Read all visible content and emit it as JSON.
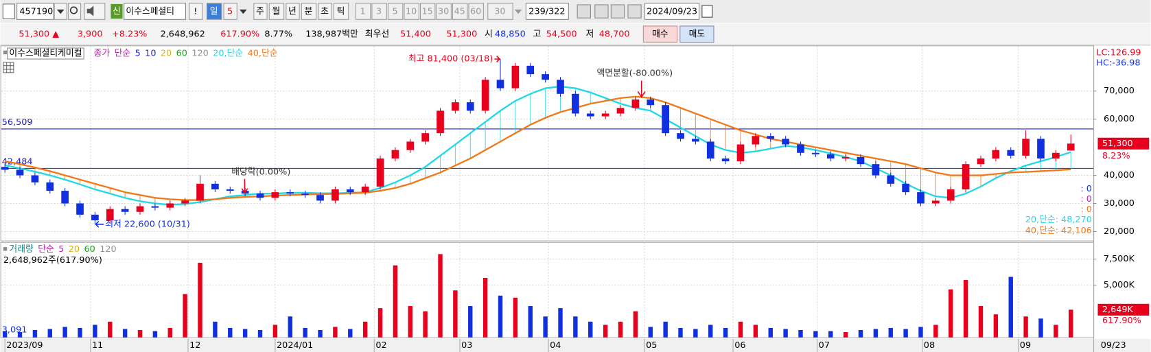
{
  "toolbar": {
    "code": "457190",
    "badge": "신",
    "name": "이수스페셜티",
    "alert": "!",
    "periods": [
      "일",
      "5",
      "주",
      "월",
      "년",
      "분",
      "초",
      "틱"
    ],
    "intervals": [
      "1",
      "3",
      "5",
      "10",
      "15",
      "30",
      "45",
      "60",
      "30"
    ],
    "count": "239/322",
    "date": "2024/09/23"
  },
  "quote": {
    "price": "51,300 ▲",
    "change": "3,900",
    "change_pct": "+8.23%",
    "volume": "2,648,962",
    "volume_ratio": "617.90%",
    "turnover": "8.77%",
    "amount": "138,987백만",
    "best_label": "최우선",
    "best_ask": "51,400",
    "best_bid": "51,300",
    "open_label": "시",
    "open": "48,850",
    "high_label": "고",
    "high": "54,500",
    "low_label": "저",
    "low": "48,700",
    "buy": "매수",
    "sell": "매도"
  },
  "chart_data": [
    {
      "type": "candlestick",
      "legend": [
        {
          "text": "이수스페셜티케미컬",
          "color": "#000000"
        },
        {
          "text": "종가",
          "color": "#c020b0"
        },
        {
          "text": "단순",
          "color": "#c020b0"
        },
        {
          "text": "5",
          "color": "#2020d0"
        },
        {
          "text": "10",
          "color": "#2020d0"
        },
        {
          "text": "20",
          "color": "#e0b000"
        },
        {
          "text": "60",
          "color": "#20a020"
        },
        {
          "text": "120",
          "color": "#909090"
        }
      ],
      "open": [
        43000,
        42000,
        40000,
        37500,
        34500,
        30000,
        26000,
        24000,
        28000,
        27000,
        29000,
        28500,
        30000,
        31000,
        37000,
        35000,
        34500,
        33500,
        32000,
        34000,
        33500,
        33000,
        31000,
        35000,
        34000,
        36000,
        46000,
        49000,
        52000,
        55000,
        63000,
        66000,
        63000,
        74000,
        71000,
        79000,
        76000,
        74000,
        69000,
        62000,
        61000,
        62000,
        64000,
        67000,
        65000,
        55000,
        53000,
        52000,
        46000,
        45000,
        51000,
        54000,
        53000,
        51000,
        48000,
        47500,
        46000,
        46500,
        44000,
        40000,
        37000,
        34000,
        30000,
        31000,
        35000,
        44000,
        46000,
        49000,
        47000,
        53000,
        46000,
        48850
      ],
      "high": [
        44000,
        43000,
        41000,
        38500,
        35500,
        31000,
        27000,
        29000,
        29000,
        30000,
        30000,
        31000,
        32000,
        40000,
        38000,
        36000,
        35500,
        34500,
        35000,
        35000,
        34500,
        34000,
        36000,
        36000,
        37000,
        47000,
        50000,
        53000,
        56000,
        64000,
        67000,
        67000,
        75000,
        81400,
        80000,
        80000,
        77000,
        75000,
        70000,
        63000,
        63000,
        65000,
        68000,
        68000,
        66000,
        56000,
        54000,
        53000,
        47000,
        52000,
        55000,
        55000,
        54000,
        52000,
        49000,
        48500,
        47500,
        47500,
        45000,
        41000,
        38000,
        35000,
        32000,
        36000,
        45000,
        47000,
        50000,
        50000,
        56000,
        54000,
        49000,
        54500
      ],
      "low": [
        41000,
        39000,
        36500,
        33500,
        29000,
        25000,
        22600,
        23000,
        26000,
        26000,
        27500,
        27500,
        29000,
        30000,
        34000,
        33500,
        32500,
        31000,
        31000,
        32500,
        32000,
        30000,
        30000,
        33000,
        33000,
        35000,
        45000,
        48000,
        51000,
        54000,
        62000,
        62000,
        62000,
        70000,
        70000,
        75000,
        73000,
        68000,
        61000,
        60000,
        60000,
        61000,
        63000,
        64000,
        54000,
        52000,
        51000,
        45000,
        44000,
        44000,
        50000,
        52000,
        50000,
        47000,
        46500,
        45000,
        45000,
        43000,
        39000,
        36000,
        33000,
        29000,
        29000,
        30000,
        34000,
        43000,
        45000,
        46000,
        46000,
        45000,
        45000,
        48700
      ],
      "close": [
        42000,
        40000,
        37500,
        34500,
        30000,
        26000,
        24000,
        28000,
        27000,
        29000,
        28500,
        30000,
        31000,
        37000,
        35000,
        34500,
        33500,
        32000,
        34000,
        33500,
        33000,
        31000,
        35000,
        34000,
        36000,
        46000,
        49000,
        52000,
        55000,
        63000,
        66000,
        63000,
        74000,
        71000,
        79000,
        76000,
        74000,
        69000,
        62000,
        61000,
        62000,
        64000,
        67000,
        65000,
        55000,
        53000,
        52000,
        46000,
        45000,
        51000,
        54000,
        53000,
        51000,
        48000,
        47500,
        46000,
        46500,
        44000,
        40000,
        37000,
        34000,
        30000,
        31000,
        35000,
        44000,
        46000,
        49000,
        47000,
        53000,
        46000,
        48000,
        51300
      ],
      "up_color": "#e8001c",
      "down_color": "#1030e0",
      "series": [
        {
          "name": "20,단순",
          "color": "#22d8e8",
          "values": [
            43600,
            42500,
            41300,
            40000,
            38500,
            36800,
            35000,
            33500,
            32000,
            30800,
            30000,
            29500,
            29800,
            30500,
            31500,
            32500,
            33000,
            33500,
            33500,
            33800,
            33800,
            33600,
            33600,
            33800,
            34000,
            35500,
            37500,
            40000,
            43000,
            47000,
            51000,
            55000,
            59000,
            63000,
            66500,
            69000,
            71000,
            71600,
            71000,
            69500,
            67500,
            65500,
            64000,
            63000,
            60000,
            57000,
            54000,
            51000,
            49000,
            48000,
            48500,
            49500,
            50500,
            50000,
            49000,
            47800,
            46500,
            45000,
            42500,
            40000,
            37000,
            34500,
            32500,
            32000,
            33500,
            36000,
            39000,
            41500,
            43500,
            45000,
            46500,
            48270
          ]
        },
        {
          "name": "40,단순",
          "color": "#f07a1a",
          "values": [
            45000,
            44000,
            42800,
            41500,
            40000,
            38500,
            37000,
            35500,
            34000,
            33000,
            32000,
            31500,
            31200,
            31200,
            31500,
            32000,
            32300,
            32500,
            32800,
            33000,
            33200,
            33300,
            33400,
            33600,
            33800,
            34500,
            35500,
            37000,
            39000,
            41000,
            43500,
            46000,
            49000,
            52000,
            55000,
            58000,
            60500,
            62500,
            64000,
            65500,
            66500,
            67500,
            68000,
            67500,
            66000,
            64000,
            62000,
            60000,
            58000,
            56000,
            54500,
            53000,
            52000,
            51000,
            50000,
            49000,
            48000,
            47000,
            46000,
            45000,
            44000,
            42500,
            41000,
            40000,
            40000,
            40000,
            40500,
            41000,
            41200,
            41500,
            41800,
            42106
          ]
        }
      ],
      "series_labels": [
        "20,단순: 48,270",
        "40,단순: 42,106"
      ],
      "side_marks": [
        ": 0",
        ": 0",
        ": 0"
      ],
      "levels": [
        {
          "value": 56509,
          "label": "56,509",
          "color": "#2020c0"
        },
        {
          "value": 42484,
          "label": "42,484",
          "color": "#2020c0"
        }
      ],
      "annotations": [
        "최고 81,400 (03/18)",
        "최저 22,600 (10/31)",
        "배당락(0.00%)",
        "액면분할(-80.00%)"
      ],
      "corner_labels": [
        "LC:126.99",
        "HC:-36.98"
      ],
      "last_label": {
        "value": 51300,
        "label": "51,300"
      },
      "last_change": "8.23%",
      "last_date": "09/23",
      "xlim": [
        -0.3,
        72.5
      ],
      "xticks": [
        {
          "value": 0,
          "label": "2023/09"
        },
        {
          "value": 5.7,
          "label": "11"
        },
        {
          "value": 12.2,
          "label": "12"
        },
        {
          "value": 18,
          "label": "2024/01"
        },
        {
          "value": 24.6,
          "label": "02"
        },
        {
          "value": 30.3,
          "label": "03"
        },
        {
          "value": 36.2,
          "label": "04"
        },
        {
          "value": 42.6,
          "label": "05"
        },
        {
          "value": 48.5,
          "label": "06"
        },
        {
          "value": 54.1,
          "label": "07"
        },
        {
          "value": 61.1,
          "label": "08"
        },
        {
          "value": 67.5,
          "label": "09"
        }
      ],
      "ylim": [
        16800,
        85700
      ],
      "yticks": [
        {
          "value": 20000,
          "label": "20,000"
        },
        {
          "value": 30000,
          "label": "30,000"
        },
        {
          "value": 40000,
          "label": "40,000"
        },
        {
          "value": 60000,
          "label": "60,000"
        },
        {
          "value": 70000,
          "label": "70,000"
        }
      ],
      "grid": true
    },
    {
      "type": "bar",
      "legend": [
        {
          "text": "거래량",
          "color": "#108080"
        },
        {
          "text": "단순",
          "color": "#c020b0"
        },
        {
          "text": "5",
          "color": "#c020b0"
        },
        {
          "text": "20",
          "color": "#e0b000"
        },
        {
          "text": "60",
          "color": "#20a020"
        },
        {
          "text": "120",
          "color": "#909090"
        }
      ],
      "subtitle": "2,648,962주(617.90%)",
      "left_label": "3,091",
      "values": [
        600000,
        500000,
        700000,
        800000,
        1000000,
        900000,
        1200000,
        1500000,
        800000,
        700000,
        600000,
        900000,
        4150000,
        7150000,
        1500000,
        900000,
        800000,
        700000,
        1200000,
        2000000,
        900000,
        700000,
        1000000,
        800000,
        1500000,
        2800000,
        6900000,
        3000000,
        2500000,
        7980000,
        4500000,
        3000000,
        5700000,
        4000000,
        3800000,
        3000000,
        2000000,
        2800000,
        2000000,
        1500000,
        1200000,
        1500000,
        2500000,
        1000000,
        1500000,
        900000,
        800000,
        1200000,
        900000,
        1500000,
        1200000,
        900000,
        800000,
        700000,
        600000,
        600000,
        500000,
        700000,
        800000,
        900000,
        800000,
        1000000,
        1200000,
        4600000,
        5500000,
        3000000,
        2200000,
        5800000,
        2000000,
        1800000,
        1200000,
        2648962
      ],
      "last_label": {
        "value": 2648962,
        "label": "2,649K"
      },
      "last_change": "617.90%",
      "ylim": [
        0,
        9000000
      ],
      "yticks": [
        {
          "value": 5000000,
          "label": "5,000K"
        },
        {
          "value": 7500000,
          "label": "7,500K"
        }
      ],
      "grid": true
    }
  ]
}
